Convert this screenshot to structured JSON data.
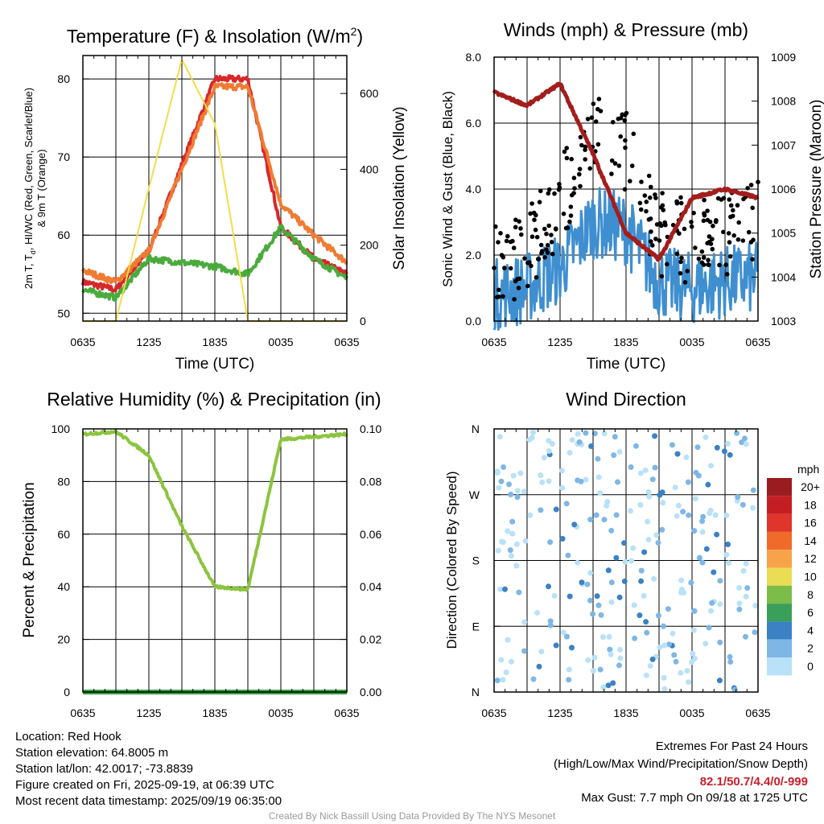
{
  "panels": {
    "temperature": {
      "title": "Temperature (F) & Insolation (W/m",
      "title_sup": "2",
      "title_end": ")",
      "ylabel_left_1": "2m T, T",
      "ylabel_left_sub": "d",
      "ylabel_left_2": ", HI/WC (Red, Green, Scarlet/Blue)",
      "ylabel_left_3": "& 9m T (Orange)",
      "ylabel_right": "Solar Insolation (Yellow)",
      "xlabel": "Time (UTC)"
    },
    "winds": {
      "title": "Winds (mph) & Pressure (mb)",
      "ylabel_left": "Sonic Wind & Gust (Blue, Black)",
      "ylabel_right": "Station Pressure (Maroon)",
      "xlabel": "Time (UTC)"
    },
    "humidity": {
      "title": "Relative Humidity (%) & Precipitation (in)",
      "ylabel_left": "Percent & Precipitation"
    },
    "direction": {
      "title": "Wind Direction",
      "ylabel_left": "Direction (Colored By Speed)",
      "colorbar_unit": "mph"
    }
  },
  "colorbar": {
    "labels": [
      "20+",
      "18",
      "16",
      "14",
      "12",
      "10",
      "8",
      "6",
      "4",
      "2",
      "0"
    ],
    "colors": [
      "#9b1c20",
      "#c41e24",
      "#e0352b",
      "#f06a2a",
      "#f8a24a",
      "#e8dd55",
      "#7cbd4a",
      "#3a9f5a",
      "#3a82c4",
      "#7eb7e6",
      "#b9e1f7"
    ]
  },
  "chart_data": [
    {
      "type": "line",
      "panel": "temperature",
      "x": [
        "0635",
        "0935",
        "1235",
        "1535",
        "1835",
        "2135",
        "0035",
        "0335",
        "0635"
      ],
      "xticks": [
        "0635",
        "1235",
        "1835",
        "0035",
        "0635"
      ],
      "yticks_left": [
        "50",
        "60",
        "70",
        "80"
      ],
      "yticks_right": [
        "0",
        "200",
        "400",
        "600"
      ],
      "ylim_left": [
        49,
        83
      ],
      "ylim_right": [
        0,
        700
      ],
      "series": [
        {
          "name": "2m T",
          "color": "#d7282a",
          "values": [
            54,
            53,
            58,
            69,
            80,
            80,
            61,
            57,
            55
          ]
        },
        {
          "name": "9m T",
          "color": "#f07b32",
          "values": [
            55.5,
            54,
            58,
            68.5,
            79,
            79,
            64,
            60,
            56.5
          ]
        },
        {
          "name": "Td",
          "color": "#4aab3d",
          "values": [
            53,
            52,
            57,
            56.5,
            56,
            55,
            61,
            57,
            54.5
          ]
        },
        {
          "name": "Solar Insolation",
          "color": "#f5dc4a",
          "axis": "right",
          "values": [
            0,
            0,
            350,
            690,
            520,
            0,
            0,
            0,
            0
          ]
        }
      ]
    },
    {
      "type": "line",
      "panel": "winds",
      "x": [
        "0635",
        "0935",
        "1235",
        "1535",
        "1835",
        "2135",
        "0035",
        "0335",
        "0635"
      ],
      "xticks": [
        "0635",
        "1235",
        "1835",
        "0035",
        "0635"
      ],
      "yticks_left": [
        "0.0",
        "2.0",
        "4.0",
        "6.0",
        "8.0"
      ],
      "yticks_right": [
        "1003",
        "1004",
        "1005",
        "1006",
        "1007",
        "1008",
        "1009"
      ],
      "ylim_left": [
        0,
        8
      ],
      "ylim_right": [
        1003,
        1009
      ],
      "series": [
        {
          "name": "Sonic Wind",
          "color": "#3f8fd0",
          "values": [
            0.8,
            1.0,
            1.6,
            3.0,
            2.8,
            1.2,
            1.0,
            1.2,
            1.3
          ]
        },
        {
          "name": "Gust",
          "color": "#000000",
          "values": [
            1.5,
            2.0,
            3.5,
            5.5,
            5.0,
            2.5,
            2.3,
            2.5,
            2.8
          ]
        },
        {
          "name": "Station Pressure",
          "color": "#a31d1d",
          "axis": "right",
          "values": [
            1008.2,
            1007.9,
            1008.4,
            1006.8,
            1005.0,
            1004.4,
            1005.8,
            1006.0,
            1005.8
          ]
        }
      ]
    },
    {
      "type": "line",
      "panel": "humidity",
      "x": [
        "0635",
        "0935",
        "1235",
        "1535",
        "1835",
        "2135",
        "0035",
        "0335",
        "0635"
      ],
      "xticks": [
        "0635",
        "1235",
        "1835",
        "0035",
        "0635"
      ],
      "yticks_left": [
        "0",
        "20",
        "40",
        "60",
        "80",
        "100"
      ],
      "yticks_right": [
        "0.00",
        "0.02",
        "0.04",
        "0.06",
        "0.08",
        "0.10"
      ],
      "ylim_left": [
        0,
        100
      ],
      "ylim_right": [
        0,
        0.1
      ],
      "series": [
        {
          "name": "Relative Humidity",
          "color": "#8cc43f",
          "values": [
            98,
            99,
            90,
            63,
            40,
            39,
            96,
            97,
            98
          ]
        },
        {
          "name": "Precipitation",
          "color": "#3a9f45",
          "axis": "right",
          "values": [
            0,
            0,
            0,
            0,
            0,
            0,
            0,
            0,
            0
          ]
        }
      ]
    },
    {
      "type": "scatter",
      "panel": "direction",
      "xticks": [
        "0635",
        "1235",
        "1835",
        "0035",
        "0635"
      ],
      "yticks_left": [
        "N",
        "E",
        "S",
        "W",
        "N"
      ],
      "ylim": [
        0,
        360
      ]
    }
  ],
  "footer": {
    "location": "Location: Red Hook",
    "elevation": "Station elevation: 64.8005 m",
    "latlon": "Station lat/lon: 42.0017; -73.8839",
    "created": "Figure created on Fri, 2025-09-19, at 06:39 UTC",
    "recent": "Most recent data timestamp: 2025/09/19 06:35:00",
    "extremes_title": "Extremes For Past 24 Hours",
    "extremes_fields": "(High/Low/Max Wind/Precipitation/Snow Depth)",
    "extremes_values": "82.1/50.7/4.4/0/-999",
    "max_gust": "Max Gust: 7.7 mph On 09/18 at 1725 UTC",
    "credit": "Created By Nick Bassill Using Data Provided By The NYS Mesonet"
  }
}
